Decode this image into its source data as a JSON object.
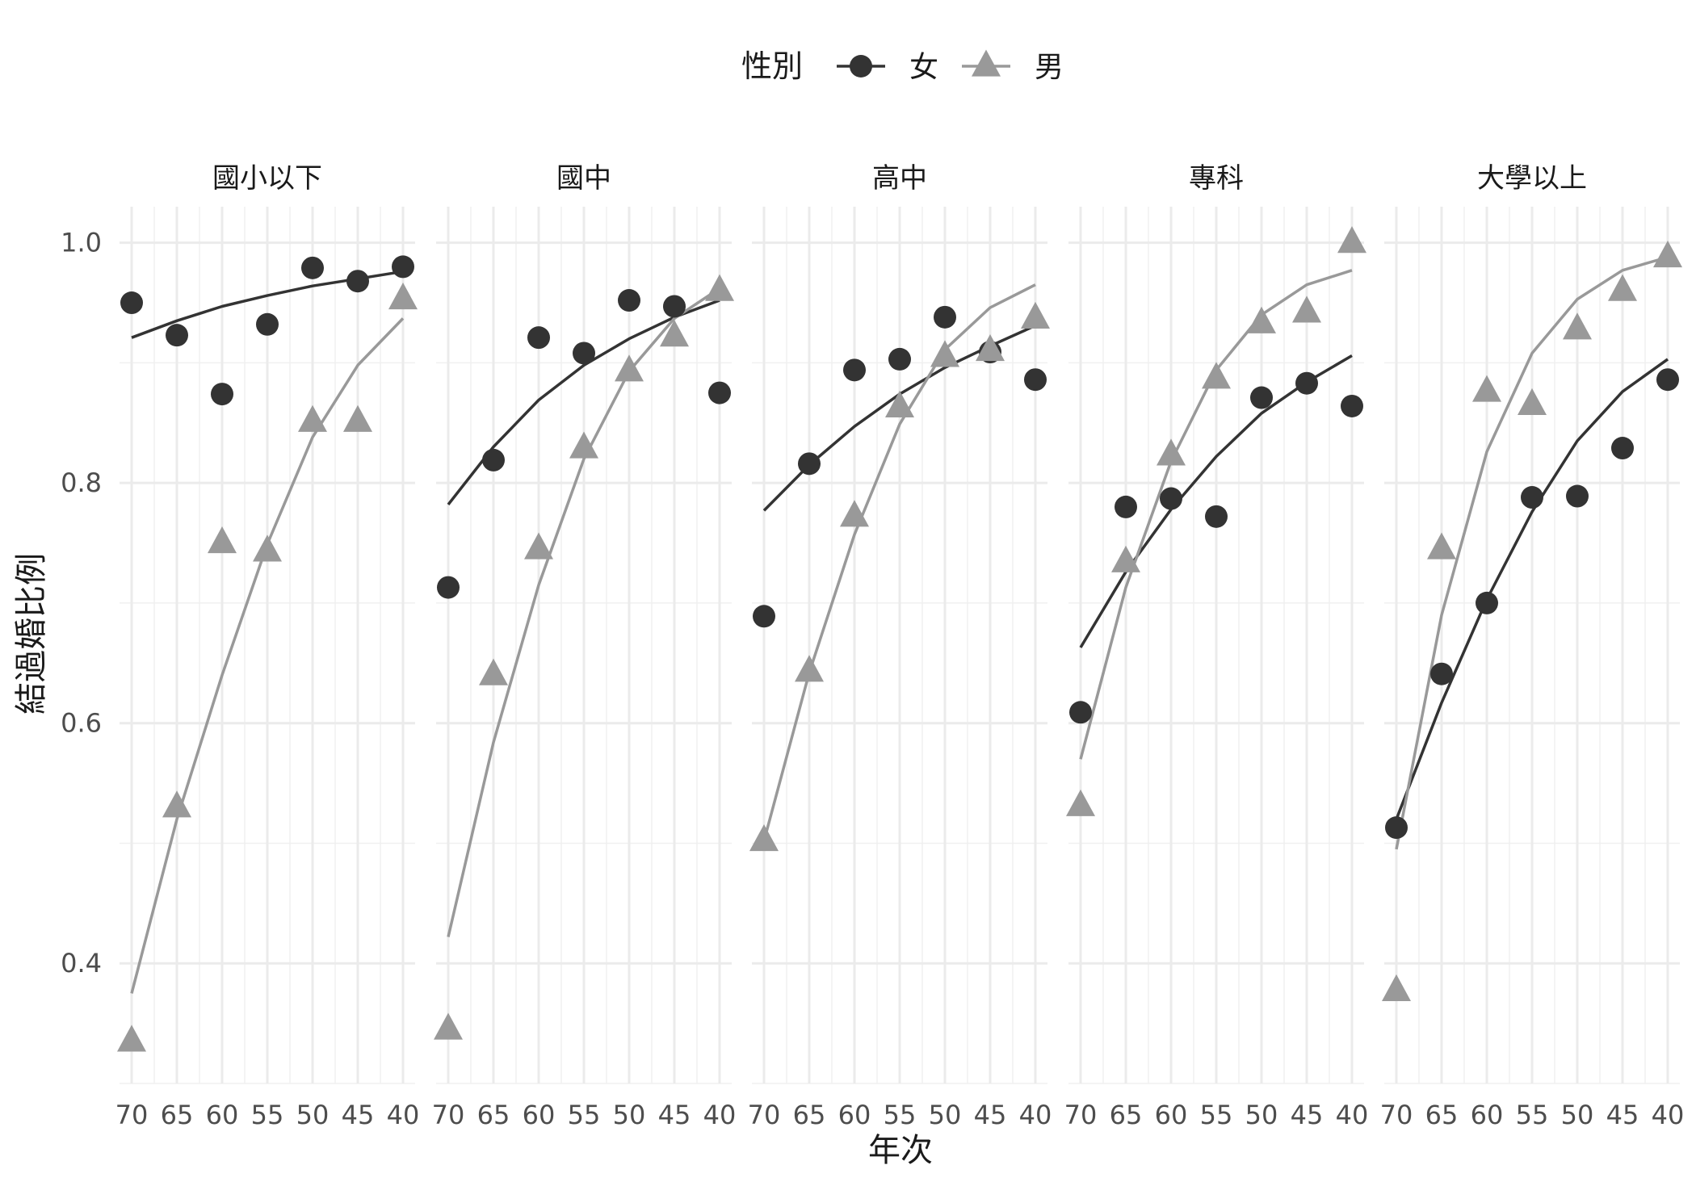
{
  "chart_data": {
    "type": "scatter",
    "xlabel": "年次",
    "ylabel": "結過婚比例",
    "x_ticks": [
      "70",
      "65",
      "60",
      "55",
      "50",
      "45",
      "40"
    ],
    "x_values": [
      70,
      65,
      60,
      55,
      50,
      45,
      40
    ],
    "x_reversed": true,
    "y_ticks": [
      "0.4",
      "0.6",
      "0.8",
      "1.0"
    ],
    "y_tick_values": [
      0.4,
      0.6,
      0.8,
      1.0
    ],
    "ylim": [
      0.3,
      1.03
    ],
    "grid": true,
    "legend": {
      "title": "性別",
      "position": "top",
      "entries": [
        {
          "label": "女",
          "shape": "circle",
          "color": "#333333"
        },
        {
          "label": "男",
          "shape": "triangle",
          "color": "#999999"
        }
      ]
    },
    "panels": [
      {
        "title": "國小以下",
        "series": [
          {
            "name": "女",
            "color": "#333333",
            "shape": "circle",
            "points": [
              0.95,
              0.923,
              0.874,
              0.932,
              0.979,
              0.968,
              0.98
            ],
            "fit": [
              0.921,
              0.935,
              0.947,
              0.956,
              0.964,
              0.97,
              0.976
            ]
          },
          {
            "name": "男",
            "color": "#999999",
            "shape": "triangle",
            "points": [
              0.335,
              0.53,
              0.75,
              0.743,
              0.851,
              0.851,
              0.953
            ],
            "fit": [
              0.375,
              0.52,
              0.64,
              0.749,
              0.838,
              0.898,
              0.937
            ]
          }
        ]
      },
      {
        "title": "國中",
        "series": [
          {
            "name": "女",
            "color": "#333333",
            "shape": "circle",
            "points": [
              0.713,
              0.819,
              0.921,
              0.908,
              0.952,
              0.947,
              0.875
            ],
            "fit": [
              0.782,
              0.83,
              0.869,
              0.898,
              0.92,
              0.938,
              0.952
            ]
          },
          {
            "name": "男",
            "color": "#999999",
            "shape": "triangle",
            "points": [
              0.345,
              0.64,
              0.745,
              0.829,
              0.893,
              0.922,
              0.96
            ],
            "fit": [
              0.422,
              0.584,
              0.715,
              0.82,
              0.893,
              0.937,
              0.962
            ]
          }
        ]
      },
      {
        "title": "高中",
        "series": [
          {
            "name": "女",
            "color": "#333333",
            "shape": "circle",
            "points": [
              0.689,
              0.816,
              0.894,
              0.903,
              0.938,
              0.909,
              0.886
            ],
            "fit": [
              0.777,
              0.815,
              0.847,
              0.874,
              0.896,
              0.914,
              0.931
            ]
          },
          {
            "name": "男",
            "color": "#999999",
            "shape": "triangle",
            "points": [
              0.502,
              0.643,
              0.772,
              0.863,
              0.905,
              0.91,
              0.937
            ],
            "fit": [
              0.502,
              0.642,
              0.757,
              0.849,
              0.911,
              0.946,
              0.965
            ]
          }
        ]
      },
      {
        "title": "專科",
        "series": [
          {
            "name": "女",
            "color": "#333333",
            "shape": "circle",
            "points": [
              0.609,
              0.78,
              0.787,
              0.772,
              0.871,
              0.883,
              0.864
            ],
            "fit": [
              0.663,
              0.726,
              0.778,
              0.822,
              0.858,
              0.884,
              0.906
            ]
          },
          {
            "name": "男",
            "color": "#999999",
            "shape": "triangle",
            "points": [
              0.531,
              0.734,
              0.823,
              0.887,
              0.933,
              0.942,
              1.0
            ],
            "fit": [
              0.57,
              0.713,
              0.818,
              0.894,
              0.94,
              0.965,
              0.977
            ]
          }
        ]
      },
      {
        "title": "大學以上",
        "series": [
          {
            "name": "女",
            "color": "#333333",
            "shape": "circle",
            "points": [
              0.513,
              0.641,
              0.7,
              0.788,
              0.789,
              0.829,
              0.886
            ],
            "fit": [
              0.52,
              0.617,
              0.703,
              0.776,
              0.835,
              0.876,
              0.903
            ]
          },
          {
            "name": "男",
            "color": "#999999",
            "shape": "triangle",
            "points": [
              0.377,
              0.745,
              0.876,
              0.865,
              0.928,
              0.96,
              0.988
            ],
            "fit": [
              0.495,
              0.69,
              0.826,
              0.908,
              0.953,
              0.977,
              0.988
            ]
          }
        ]
      }
    ]
  }
}
